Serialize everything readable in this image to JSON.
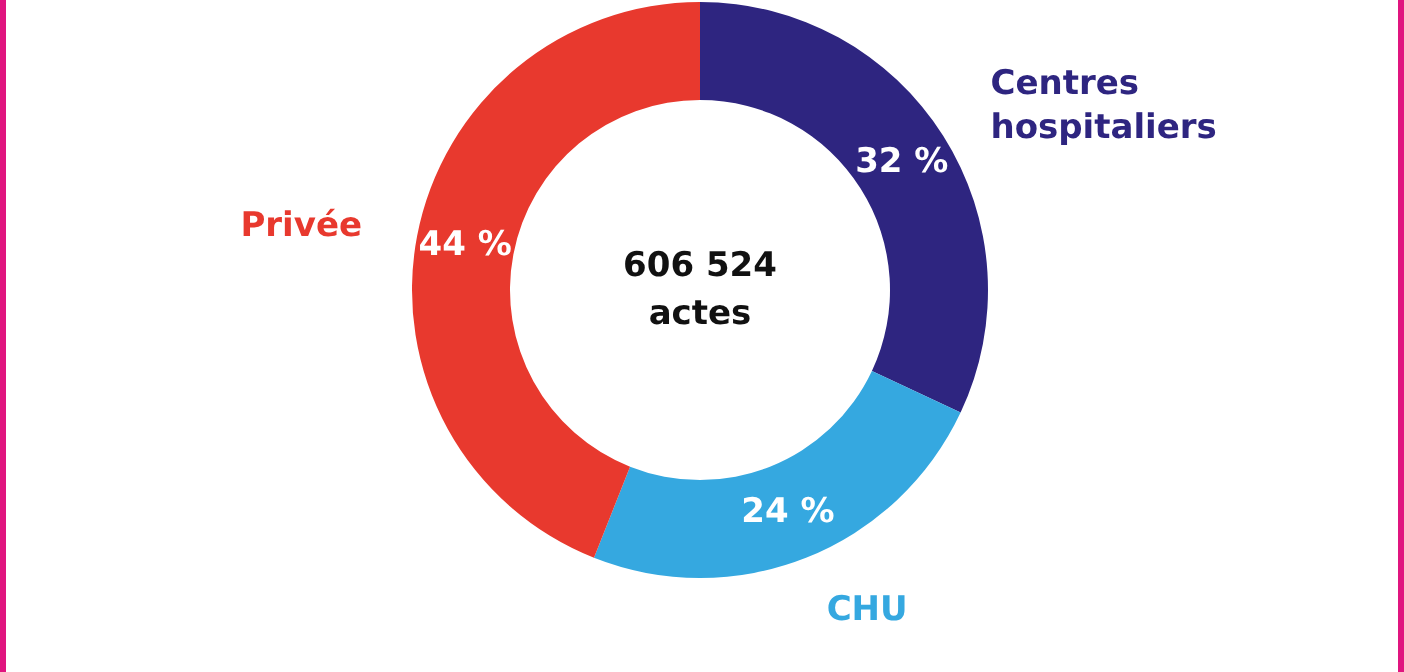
{
  "chart_data": {
    "type": "donut",
    "categories": [
      "Centres hospitaliers",
      "CHU",
      "Privée"
    ],
    "values": [
      32,
      24,
      44
    ],
    "colors": [
      "#2e2580",
      "#35a8e0",
      "#e8392e"
    ],
    "value_labels": [
      "32 %",
      "24 %",
      "44 %"
    ],
    "annotations": [
      "606 524",
      "actes"
    ]
  }
}
